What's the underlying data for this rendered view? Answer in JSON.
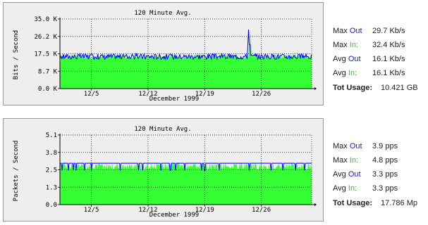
{
  "chart_data": [
    {
      "type": "area",
      "title": "120 Minute Avg.",
      "xlabel": "December 1999",
      "ylabel": "Bits / Second",
      "x_ticks": [
        "12/5",
        "12/12",
        "12/19",
        "12/26"
      ],
      "y_ticks": [
        "0.0 K",
        "8.7 K",
        "17.5 K",
        "26.2 K",
        "35.0 K"
      ],
      "ylim": [
        0,
        35.0
      ],
      "grid": true,
      "series": [
        {
          "name": "In",
          "color": "#33ff33",
          "style": "filled",
          "typical": 16.1,
          "max": 32.4
        },
        {
          "name": "Out",
          "color": "#0000ff",
          "style": "line",
          "typical": 16.1,
          "max": 29.7
        }
      ]
    },
    {
      "type": "area",
      "title": "120 Minute Avg.",
      "xlabel": "December 1999",
      "ylabel": "Packets / Second",
      "x_ticks": [
        "12/5",
        "12/12",
        "12/19",
        "12/26"
      ],
      "y_ticks": [
        "0.0",
        "1.3",
        "2.5",
        "3.8",
        "5.1"
      ],
      "ylim": [
        0,
        5.1
      ],
      "grid": true,
      "series": [
        {
          "name": "In",
          "color": "#33ff33",
          "style": "filled",
          "typical": 3.3,
          "max": 4.8
        },
        {
          "name": "Out",
          "color": "#0000ff",
          "style": "line",
          "typical": 3.3,
          "max": 3.9
        }
      ]
    }
  ],
  "stats": [
    {
      "max_out_label": "Max",
      "out_word": "Out",
      "max_out": "29.7 Kb/s",
      "max_in_label": "Max",
      "in_word": "In:",
      "max_in": "32.4 Kb/s",
      "avg_out_label": "Avg",
      "avg_out": "16.1 Kb/s",
      "avg_in_label": "Avg",
      "avg_in": "16.1 Kb/s",
      "tot_label": "Tot Usage:",
      "tot": "10.421 GB"
    },
    {
      "max_out_label": "Max",
      "out_word": "Out",
      "max_out": "3.9 pps",
      "max_in_label": "Max",
      "in_word": "In:",
      "max_in": "4.8 pps",
      "avg_out_label": "Avg",
      "avg_out": "3.3 pps",
      "avg_in_label": "Avg",
      "avg_in": "3.3 pps",
      "tot_label": "Tot Usage:",
      "tot": "17.786 Mp"
    }
  ],
  "colors": {
    "in": "#33ff33",
    "out": "#0000ff",
    "max_line": "#ff0000",
    "panel_bg": "#eeeeee"
  }
}
